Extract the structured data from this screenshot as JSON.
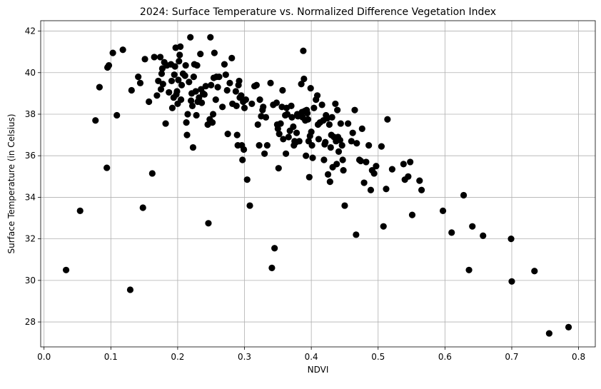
{
  "chart_data": {
    "type": "scatter",
    "title": "2024: Surface Temperature vs. Normalized Difference Vegetation Index",
    "xlabel": "NDVI",
    "ylabel": "Surface Temperature (in Celsius)",
    "xlim": [
      -0.005,
      0.825
    ],
    "ylim": [
      26.8,
      42.5
    ],
    "xticks": [
      "0.0",
      "0.1",
      "0.2",
      "0.3",
      "0.4",
      "0.5",
      "0.6",
      "0.7",
      "0.8"
    ],
    "xtick_values": [
      0.0,
      0.1,
      0.2,
      0.3,
      0.4,
      0.5,
      0.6,
      0.7,
      0.8
    ],
    "yticks": [
      "28",
      "30",
      "32",
      "34",
      "36",
      "38",
      "40",
      "42"
    ],
    "ytick_values": [
      28,
      30,
      32,
      34,
      36,
      38,
      40,
      42
    ],
    "grid": true,
    "marker_color": "#000000",
    "series": [
      {
        "points": [
          [
            0.033,
            30.5
          ],
          [
            0.054,
            33.35
          ],
          [
            0.077,
            37.7
          ],
          [
            0.083,
            39.3
          ],
          [
            0.094,
            35.42
          ],
          [
            0.095,
            40.25
          ],
          [
            0.097,
            40.35
          ],
          [
            0.103,
            40.95
          ],
          [
            0.109,
            37.95
          ],
          [
            0.118,
            41.1
          ],
          [
            0.129,
            29.55
          ],
          [
            0.131,
            39.15
          ],
          [
            0.141,
            39.8
          ],
          [
            0.144,
            39.5
          ],
          [
            0.148,
            33.5
          ],
          [
            0.151,
            40.65
          ],
          [
            0.157,
            38.6
          ],
          [
            0.162,
            35.15
          ],
          [
            0.165,
            40.75
          ],
          [
            0.169,
            38.9
          ],
          [
            0.171,
            39.6
          ],
          [
            0.174,
            40.75
          ],
          [
            0.175,
            39.2
          ],
          [
            0.176,
            39.95
          ],
          [
            0.177,
            40.2
          ],
          [
            0.178,
            39.45
          ],
          [
            0.18,
            40.5
          ],
          [
            0.182,
            37.55
          ],
          [
            0.184,
            40.35
          ],
          [
            0.187,
            39.05
          ],
          [
            0.19,
            40.4
          ],
          [
            0.191,
            39.6
          ],
          [
            0.192,
            38.3
          ],
          [
            0.194,
            38.8
          ],
          [
            0.195,
            39.9
          ],
          [
            0.196,
            40.3
          ],
          [
            0.197,
            41.2
          ],
          [
            0.198,
            38.95
          ],
          [
            0.199,
            39.1
          ],
          [
            0.2,
            38.5
          ],
          [
            0.201,
            39.65
          ],
          [
            0.202,
            40.55
          ],
          [
            0.203,
            40.85
          ],
          [
            0.204,
            41.25
          ],
          [
            0.205,
            38.7
          ],
          [
            0.206,
            39.4
          ],
          [
            0.208,
            39.95
          ],
          [
            0.211,
            39.85
          ],
          [
            0.212,
            40.35
          ],
          [
            0.213,
            37.6
          ],
          [
            0.214,
            37.0
          ],
          [
            0.215,
            38.0
          ],
          [
            0.217,
            39.55
          ],
          [
            0.219,
            41.7
          ],
          [
            0.22,
            38.65
          ],
          [
            0.221,
            39.0
          ],
          [
            0.222,
            38.4
          ],
          [
            0.223,
            36.4
          ],
          [
            0.224,
            39.8
          ],
          [
            0.225,
            40.4
          ],
          [
            0.227,
            39.1
          ],
          [
            0.228,
            37.95
          ],
          [
            0.229,
            40.35
          ],
          [
            0.23,
            38.6
          ],
          [
            0.232,
            38.8
          ],
          [
            0.234,
            40.9
          ],
          [
            0.235,
            39.2
          ],
          [
            0.236,
            38.55
          ],
          [
            0.238,
            39.0
          ],
          [
            0.24,
            38.95
          ],
          [
            0.242,
            39.35
          ],
          [
            0.245,
            37.5
          ],
          [
            0.246,
            32.75
          ],
          [
            0.248,
            37.75
          ],
          [
            0.249,
            41.7
          ],
          [
            0.25,
            39.4
          ],
          [
            0.252,
            37.6
          ],
          [
            0.253,
            38.0
          ],
          [
            0.254,
            39.75
          ],
          [
            0.255,
            40.95
          ],
          [
            0.257,
            38.7
          ],
          [
            0.258,
            39.8
          ],
          [
            0.26,
            39.3
          ],
          [
            0.262,
            39.8
          ],
          [
            0.267,
            38.35
          ],
          [
            0.27,
            40.4
          ],
          [
            0.272,
            39.9
          ],
          [
            0.274,
            39.15
          ],
          [
            0.275,
            37.05
          ],
          [
            0.278,
            39.5
          ],
          [
            0.281,
            40.7
          ],
          [
            0.282,
            38.5
          ],
          [
            0.287,
            39.1
          ],
          [
            0.288,
            38.4
          ],
          [
            0.289,
            37.0
          ],
          [
            0.29,
            36.5
          ],
          [
            0.291,
            39.4
          ],
          [
            0.292,
            39.6
          ],
          [
            0.293,
            38.8
          ],
          [
            0.295,
            38.9
          ],
          [
            0.296,
            36.5
          ],
          [
            0.297,
            35.8
          ],
          [
            0.298,
            38.6
          ],
          [
            0.299,
            36.3
          ],
          [
            0.3,
            38.3
          ],
          [
            0.302,
            38.7
          ],
          [
            0.304,
            34.85
          ],
          [
            0.308,
            33.6
          ],
          [
            0.311,
            38.5
          ],
          [
            0.315,
            39.35
          ],
          [
            0.318,
            39.4
          ],
          [
            0.32,
            37.5
          ],
          [
            0.322,
            36.5
          ],
          [
            0.323,
            38.7
          ],
          [
            0.325,
            37.9
          ],
          [
            0.327,
            38.2
          ],
          [
            0.328,
            38.35
          ],
          [
            0.33,
            36.1
          ],
          [
            0.332,
            37.85
          ],
          [
            0.334,
            36.5
          ],
          [
            0.339,
            39.5
          ],
          [
            0.341,
            30.6
          ],
          [
            0.343,
            38.45
          ],
          [
            0.345,
            31.55
          ],
          [
            0.348,
            38.55
          ],
          [
            0.349,
            37.5
          ],
          [
            0.35,
            37.3
          ],
          [
            0.351,
            35.4
          ],
          [
            0.352,
            37.05
          ],
          [
            0.354,
            37.55
          ],
          [
            0.356,
            38.35
          ],
          [
            0.357,
            39.15
          ],
          [
            0.358,
            36.8
          ],
          [
            0.361,
            37.95
          ],
          [
            0.362,
            36.1
          ],
          [
            0.363,
            38.3
          ],
          [
            0.364,
            38.0
          ],
          [
            0.366,
            36.9
          ],
          [
            0.368,
            37.2
          ],
          [
            0.37,
            38.4
          ],
          [
            0.371,
            37.85
          ],
          [
            0.373,
            37.4
          ],
          [
            0.374,
            36.5
          ],
          [
            0.375,
            36.7
          ],
          [
            0.377,
            36.65
          ],
          [
            0.378,
            37.1
          ],
          [
            0.379,
            38.0
          ],
          [
            0.38,
            37.9
          ],
          [
            0.382,
            36.7
          ],
          [
            0.383,
            37.95
          ],
          [
            0.385,
            39.45
          ],
          [
            0.386,
            38.1
          ],
          [
            0.387,
            37.85
          ],
          [
            0.388,
            41.05
          ],
          [
            0.389,
            39.7
          ],
          [
            0.39,
            38.15
          ],
          [
            0.391,
            37.7
          ],
          [
            0.392,
            36.0
          ],
          [
            0.393,
            38.2
          ],
          [
            0.394,
            38.05
          ],
          [
            0.395,
            37.75
          ],
          [
            0.396,
            36.7
          ],
          [
            0.397,
            34.97
          ],
          [
            0.398,
            36.95
          ],
          [
            0.399,
            39.25
          ],
          [
            0.4,
            37.15
          ],
          [
            0.401,
            36.5
          ],
          [
            0.402,
            35.9
          ],
          [
            0.404,
            38.3
          ],
          [
            0.407,
            38.7
          ],
          [
            0.409,
            38.9
          ],
          [
            0.41,
            37.5
          ],
          [
            0.411,
            36.8
          ],
          [
            0.413,
            37.6
          ],
          [
            0.416,
            38.45
          ],
          [
            0.418,
            37.7
          ],
          [
            0.419,
            35.8
          ],
          [
            0.42,
            36.55
          ],
          [
            0.421,
            36.65
          ],
          [
            0.422,
            37.95
          ],
          [
            0.424,
            37.8
          ],
          [
            0.425,
            35.1
          ],
          [
            0.427,
            37.5
          ],
          [
            0.428,
            34.75
          ],
          [
            0.429,
            36.4
          ],
          [
            0.43,
            37.0
          ],
          [
            0.431,
            37.85
          ],
          [
            0.432,
            35.45
          ],
          [
            0.434,
            36.9
          ],
          [
            0.436,
            38.5
          ],
          [
            0.437,
            36.7
          ],
          [
            0.438,
            35.6
          ],
          [
            0.439,
            38.2
          ],
          [
            0.44,
            36.9
          ],
          [
            0.441,
            36.2
          ],
          [
            0.443,
            36.75
          ],
          [
            0.444,
            37.55
          ],
          [
            0.446,
            36.5
          ],
          [
            0.447,
            35.8
          ],
          [
            0.448,
            35.3
          ],
          [
            0.45,
            33.6
          ],
          [
            0.455,
            37.55
          ],
          [
            0.46,
            36.7
          ],
          [
            0.462,
            37.1
          ],
          [
            0.465,
            38.2
          ],
          [
            0.467,
            32.2
          ],
          [
            0.468,
            36.6
          ],
          [
            0.472,
            35.8
          ],
          [
            0.474,
            35.75
          ],
          [
            0.476,
            37.3
          ],
          [
            0.479,
            34.7
          ],
          [
            0.482,
            35.7
          ],
          [
            0.486,
            36.5
          ],
          [
            0.489,
            34.35
          ],
          [
            0.491,
            35.3
          ],
          [
            0.494,
            35.15
          ],
          [
            0.497,
            35.5
          ],
          [
            0.505,
            36.45
          ],
          [
            0.508,
            32.6
          ],
          [
            0.512,
            34.4
          ],
          [
            0.514,
            37.75
          ],
          [
            0.521,
            35.35
          ],
          [
            0.538,
            35.6
          ],
          [
            0.54,
            34.85
          ],
          [
            0.545,
            35.0
          ],
          [
            0.548,
            35.7
          ],
          [
            0.551,
            33.15
          ],
          [
            0.562,
            34.8
          ],
          [
            0.565,
            34.35
          ],
          [
            0.597,
            33.35
          ],
          [
            0.61,
            32.3
          ],
          [
            0.628,
            34.1
          ],
          [
            0.636,
            30.5
          ],
          [
            0.641,
            32.6
          ],
          [
            0.657,
            32.15
          ],
          [
            0.699,
            32.0
          ],
          [
            0.7,
            29.95
          ],
          [
            0.734,
            30.45
          ],
          [
            0.756,
            27.45
          ],
          [
            0.785,
            27.75
          ]
        ]
      }
    ]
  }
}
